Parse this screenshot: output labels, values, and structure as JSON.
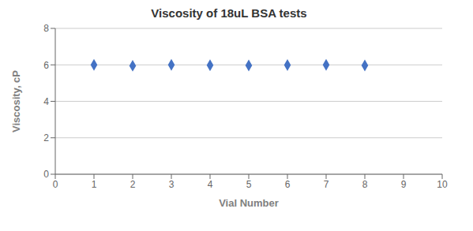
{
  "chart_data": {
    "type": "scatter",
    "title": "Viscosity of 18uL BSA tests",
    "xlabel": "Vial Number",
    "ylabel": "Viscosity, cP",
    "x": [
      1,
      2,
      3,
      4,
      5,
      6,
      7,
      8
    ],
    "values": [
      6.0,
      5.95,
      6.0,
      5.98,
      5.97,
      5.99,
      6.0,
      5.97
    ],
    "color": "#4472C4",
    "marker": "diamond",
    "xlim": [
      0,
      10
    ],
    "ylim": [
      0,
      8
    ],
    "xticks": [
      0,
      1,
      2,
      3,
      4,
      5,
      6,
      7,
      8,
      9,
      10
    ],
    "yticks": [
      0,
      2,
      4,
      6,
      8
    ],
    "grid": "y"
  }
}
